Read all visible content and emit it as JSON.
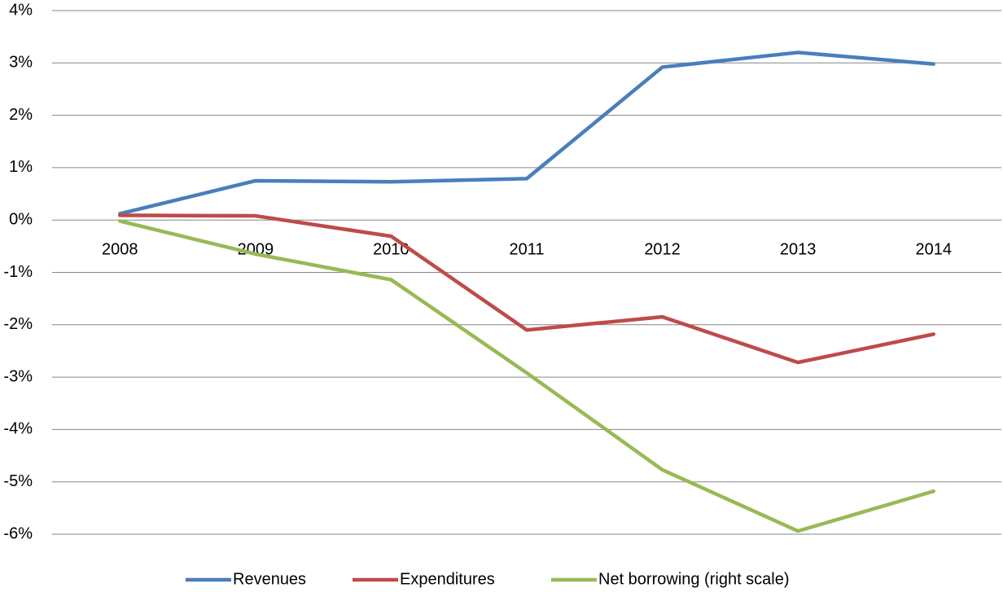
{
  "chart_data": {
    "type": "line",
    "categories": [
      "2008",
      "2009",
      "2010",
      "2011",
      "2012",
      "2013",
      "2014"
    ],
    "series": [
      {
        "name": "Revenues",
        "color": "#4a7ebb",
        "values": [
          0.12,
          0.75,
          0.73,
          0.79,
          2.92,
          3.2,
          2.98
        ]
      },
      {
        "name": "Expenditures",
        "color": "#be4b48",
        "values": [
          0.09,
          0.08,
          -0.31,
          -2.1,
          -1.85,
          -2.72,
          -2.18
        ]
      },
      {
        "name": "Net borrowing (right scale)",
        "color": "#98b954",
        "values": [
          -0.02,
          -0.65,
          -1.14,
          -2.92,
          -4.77,
          -5.94,
          -5.18
        ]
      }
    ],
    "ylim": [
      -6,
      4
    ],
    "yticks": [
      {
        "value": -6,
        "label": "-6%"
      },
      {
        "value": -5,
        "label": "-5%"
      },
      {
        "value": -4,
        "label": "-4%"
      },
      {
        "value": -3,
        "label": "-3%"
      },
      {
        "value": -2,
        "label": "-2%"
      },
      {
        "value": -1,
        "label": "-1%"
      },
      {
        "value": 0,
        "label": "0%"
      },
      {
        "value": 1,
        "label": "1%"
      },
      {
        "value": 2,
        "label": "2%"
      },
      {
        "value": 3,
        "label": "3%"
      },
      {
        "value": 4,
        "label": "4%"
      }
    ],
    "grid": true,
    "legend": "bottom"
  }
}
